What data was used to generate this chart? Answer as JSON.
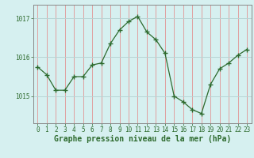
{
  "x": [
    0,
    1,
    2,
    3,
    4,
    5,
    6,
    7,
    8,
    9,
    10,
    11,
    12,
    13,
    14,
    15,
    16,
    17,
    18,
    19,
    20,
    21,
    22,
    23
  ],
  "y": [
    1015.75,
    1015.55,
    1015.15,
    1015.15,
    1015.5,
    1015.5,
    1015.8,
    1015.85,
    1016.35,
    1016.7,
    1016.92,
    1017.05,
    1016.65,
    1016.45,
    1016.1,
    1015.0,
    1014.85,
    1014.65,
    1014.55,
    1015.3,
    1015.7,
    1015.85,
    1016.05,
    1016.2
  ],
  "line_color": "#2d6a2d",
  "marker": "+",
  "marker_size": 4,
  "background_color": "#d6f0f0",
  "grid_color_h": "#b8d4d4",
  "grid_color_v": "#e0a0a0",
  "xlabel": "Graphe pression niveau de la mer (hPa)",
  "xlabel_fontsize": 7,
  "yticks": [
    1015,
    1016,
    1017
  ],
  "ylim": [
    1014.3,
    1017.35
  ],
  "xlim": [
    -0.5,
    23.5
  ],
  "xticks": [
    0,
    1,
    2,
    3,
    4,
    5,
    6,
    7,
    8,
    9,
    10,
    11,
    12,
    13,
    14,
    15,
    16,
    17,
    18,
    19,
    20,
    21,
    22,
    23
  ],
  "tick_fontsize": 5.5,
  "label_color": "#2d6a2d",
  "font_family": "monospace"
}
